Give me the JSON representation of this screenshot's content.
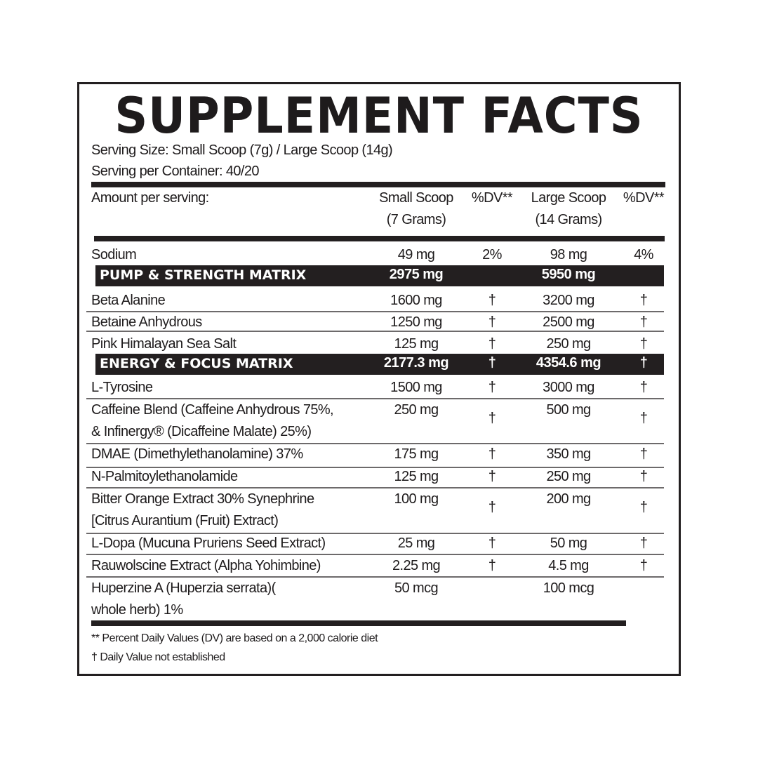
{
  "title": "SUPPLEMENT FACTS",
  "serving_size": "Serving Size: Small Scoop (7g) / Large Scoop (14g)",
  "servings_per_container": "Serving per Container: 40/20",
  "header": {
    "amount": "Amount per serving:",
    "small_scoop": "Small Scoop",
    "small_grams": "(7 Grams)",
    "dv1": "%DV**",
    "large_scoop": "Large Scoop",
    "large_grams": "(14 Grams)",
    "dv2": "%DV**"
  },
  "rows": [
    {
      "type": "item",
      "name": [
        "Sodium"
      ],
      "small": "49 mg",
      "dv1": "2%",
      "large": "98 mg",
      "dv2": "4%"
    },
    {
      "type": "band",
      "name": [
        "PUMP & STRENGTH MATRIX"
      ],
      "small": "2975 mg",
      "dv1": "",
      "large": "5950 mg",
      "dv2": ""
    },
    {
      "type": "item",
      "name": [
        "Beta Alanine"
      ],
      "small": "1600 mg",
      "dv1": "†",
      "large": "3200 mg",
      "dv2": "†"
    },
    {
      "type": "item",
      "name": [
        "Betaine Anhydrous"
      ],
      "small": "1250 mg",
      "dv1": "†",
      "large": "2500 mg",
      "dv2": "†"
    },
    {
      "type": "item",
      "name": [
        "Pink Himalayan Sea Salt"
      ],
      "small": "125 mg",
      "dv1": "†",
      "large": "250 mg",
      "dv2": "†"
    },
    {
      "type": "band",
      "name": [
        "ENERGY & FOCUS MATRIX"
      ],
      "small": "2177.3 mg",
      "dv1": "†",
      "large": "4354.6 mg",
      "dv2": "†"
    },
    {
      "type": "item",
      "name": [
        "L-Tyrosine"
      ],
      "small": "1500 mg",
      "dv1": "†",
      "large": "3000 mg",
      "dv2": "†"
    },
    {
      "type": "item",
      "name": [
        "Caffeine Blend (Caffeine Anhydrous 75%,",
        "& Infinergy® (Dicaffeine Malate) 25%)"
      ],
      "small": "250 mg",
      "dv1": "†",
      "large": "500 mg",
      "dv2": "†"
    },
    {
      "type": "item",
      "name": [
        "DMAE (Dimethylethanolamine) 37%"
      ],
      "small": "175 mg",
      "dv1": "†",
      "large": "350 mg",
      "dv2": "†"
    },
    {
      "type": "item",
      "name": [
        "N-Palmitoylethanolamide"
      ],
      "small": "125 mg",
      "dv1": "†",
      "large": "250 mg",
      "dv2": "†"
    },
    {
      "type": "item",
      "name": [
        "Bitter Orange Extract 30% Synephrine",
        "[Citrus Aurantium (Fruit) Extract)"
      ],
      "small": "100 mg",
      "dv1": "†",
      "large": "200 mg",
      "dv2": "†"
    },
    {
      "type": "item",
      "name": [
        "L-Dopa (Mucuna Pruriens Seed Extract)"
      ],
      "small": "25 mg",
      "dv1": "†",
      "large": "50 mg",
      "dv2": "†"
    },
    {
      "type": "item",
      "name": [
        "Rauwolscine Extract (Alpha Yohimbine)"
      ],
      "small": "2.25 mg",
      "dv1": "†",
      "large": "4.5 mg",
      "dv2": "†"
    },
    {
      "type": "item",
      "name": [
        "Huperzine A (Huperzia serrata)(",
        "whole herb) 1%"
      ],
      "small": "50 mcg",
      "dv1": "",
      "large": "100 mcg",
      "dv2": ""
    }
  ],
  "footnotes": {
    "dv_basis": "** Percent Daily Values (DV) are based on a 2,000 calorie diet",
    "dagger": "† Daily Value not established"
  }
}
